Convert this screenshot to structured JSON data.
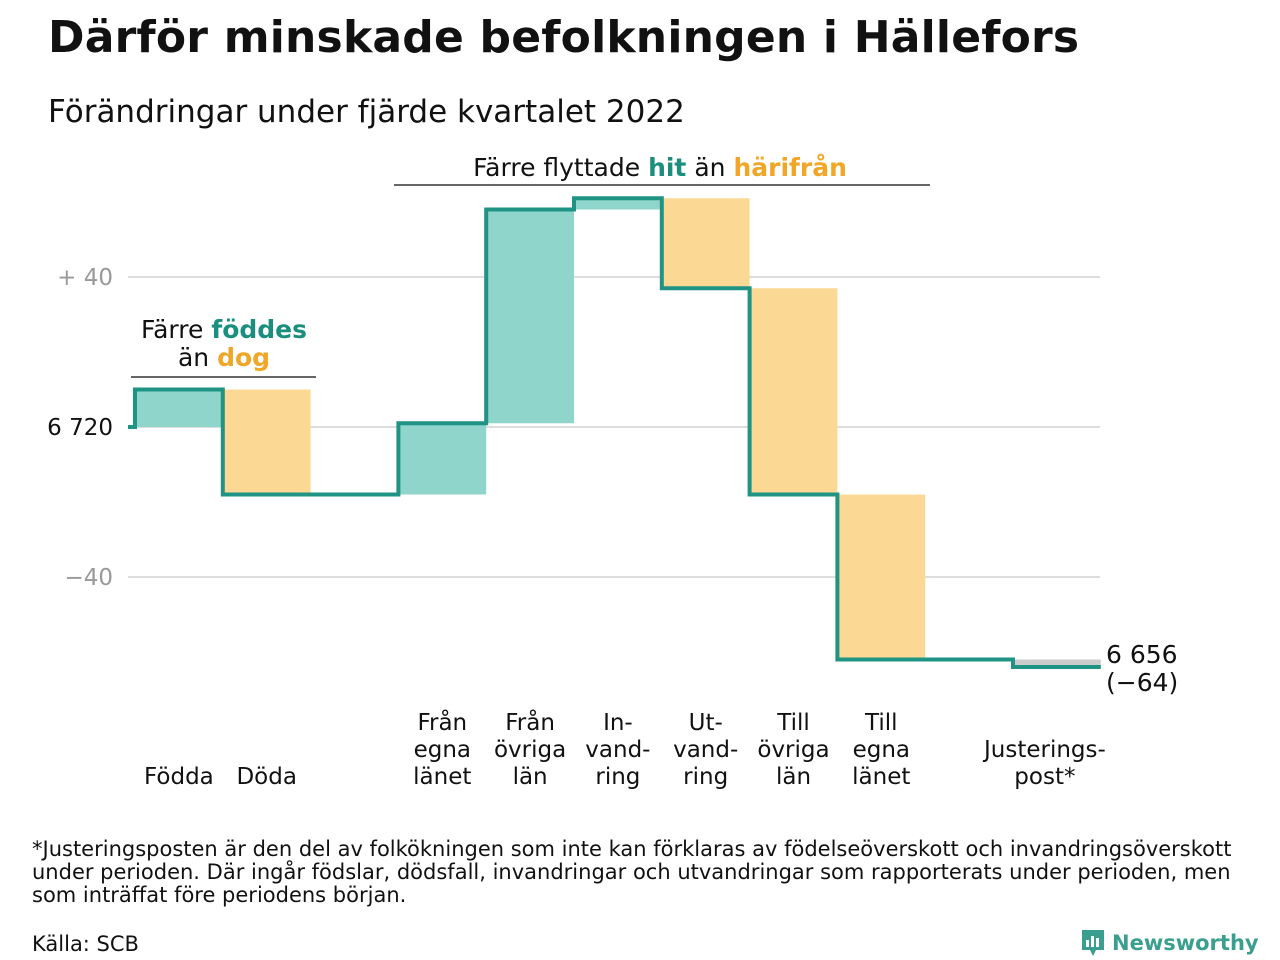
{
  "title": "Därför minskade befolkningen i Hällefors",
  "subtitle": "Förändringar under fjärde kvartalet 2022",
  "colors": {
    "increase": "#8fd5cb",
    "decrease": "#fcd895",
    "adjustment": "#cccccc",
    "line": "#1f9484",
    "teal_text": "#1a8f7e",
    "orange_text": "#f0a626",
    "grid": "#dddddd"
  },
  "chart_data": {
    "type": "waterfall",
    "start_value": 6720,
    "start_label": "6 720",
    "end_value": 6656,
    "end_label": "6 656",
    "end_change_label": "(−64)",
    "y_ticks": [
      {
        "value": 40,
        "label": "+ 40"
      },
      {
        "value": 0,
        "label": "6 720"
      },
      {
        "value": -40,
        "label": "−40"
      }
    ],
    "categories": [
      {
        "label": [
          "Födda"
        ],
        "change": 10
      },
      {
        "label": [
          "Döda"
        ],
        "change": -28
      },
      {
        "label": [
          ""
        ],
        "change": 0
      },
      {
        "label": [
          "Från",
          "egna",
          "länet"
        ],
        "change": 19
      },
      {
        "label": [
          "Från",
          "övriga",
          "län"
        ],
        "change": 57
      },
      {
        "label": [
          "In-",
          "vand-",
          "ring"
        ],
        "change": 3
      },
      {
        "label": [
          "Ut-",
          "vand-",
          "ring"
        ],
        "change": -24
      },
      {
        "label": [
          "Till",
          "övriga",
          "län"
        ],
        "change": -55
      },
      {
        "label": [
          "Till",
          "egna",
          "länet"
        ],
        "change": -44
      },
      {
        "label": [
          ""
        ],
        "change": 0
      },
      {
        "label": [
          "Justerings-",
          "post*"
        ],
        "change": -2
      }
    ],
    "annotations": [
      {
        "parts": [
          "Färre ",
          "föddes"
        ],
        "line2": [
          "än ",
          "dog"
        ]
      },
      {
        "parts": [
          "Färre flyttade ",
          "hit",
          " än ",
          "härifrån"
        ]
      }
    ]
  },
  "footnote": "*Justeringsposten är den del av folkökningen som inte kan förklaras av födelseöverskott och invandringsöverskott under perioden. Där ingår födslar, dödsfall, invandringar och utvandringar som rapporterats under perioden, men som inträffat före periodens början.",
  "source": "Källa: SCB",
  "brand": "Newsworthy",
  "brand_icon": "newsworthy-logo-icon"
}
